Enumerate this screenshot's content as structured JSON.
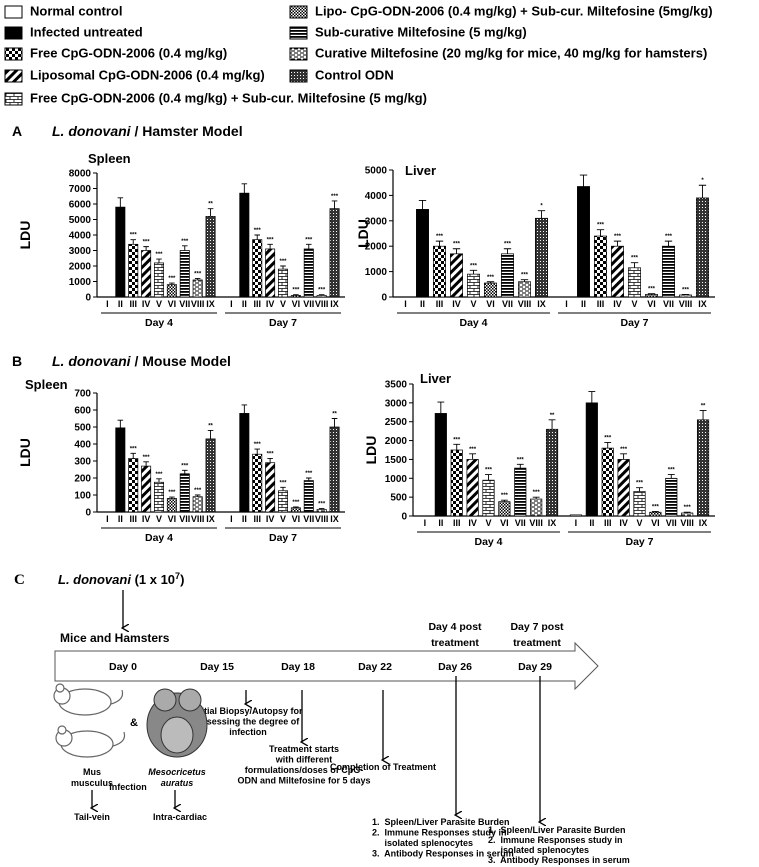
{
  "legend": {
    "items": [
      {
        "label": "Normal control",
        "pattern": "blank"
      },
      {
        "label": "Infected untreated",
        "pattern": "solid"
      },
      {
        "label": "Free CpG-ODN-2006 (0.4 mg/kg)",
        "pattern": "checker"
      },
      {
        "label": "Liposomal CpG-ODN-2006 (0.4 mg/kg)",
        "pattern": "diagonal"
      },
      {
        "label": "Free CpG-ODN-2006 (0.4 mg/kg) + Sub-cur. Miltefosine (5 mg/kg)",
        "pattern": "brick"
      },
      {
        "label": "Lipo- CpG-ODN-2006 (0.4 mg/kg) + Sub-cur. Miltefosine (5mg/kg)",
        "pattern": "fine-checker"
      },
      {
        "label": "Sub-curative Miltefosine (5 mg/kg)",
        "pattern": "hlines"
      },
      {
        "label": "Curative Miltefosine (20 mg/kg for mice, 40 mg/kg for hamsters)",
        "pattern": "dashes"
      },
      {
        "label": "Control ODN",
        "pattern": "grid"
      }
    ]
  },
  "panels": [
    {
      "label": "A",
      "organism": "L. donovani",
      "model": " / Hamster Model"
    },
    {
      "label": "B",
      "organism": "L. donovani",
      "model": " / Mouse Model"
    }
  ],
  "chart_data": [
    {
      "type": "bar",
      "title": "Spleen",
      "ylabel": "LDU",
      "categories": [
        "I",
        "II",
        "III",
        "IV",
        "V",
        "VI",
        "VII",
        "VIII",
        "IX"
      ],
      "groups": [
        {
          "name": "Day 4",
          "values": [
            0,
            5800,
            3400,
            3000,
            2200,
            800,
            3000,
            1100,
            5200
          ],
          "errors": [
            0,
            600,
            300,
            250,
            250,
            100,
            300,
            100,
            500
          ],
          "significance": [
            null,
            null,
            "***",
            "***",
            "***",
            "***",
            "***",
            "***",
            "**"
          ]
        },
        {
          "name": "Day 7",
          "values": [
            0,
            6700,
            3700,
            3100,
            1800,
            100,
            3100,
            100,
            5700
          ],
          "errors": [
            0,
            600,
            300,
            300,
            200,
            50,
            300,
            50,
            500
          ],
          "significance": [
            null,
            null,
            "***",
            "***",
            "***",
            "***",
            "***",
            "***",
            "***"
          ]
        }
      ],
      "ylim": [
        0,
        8000
      ],
      "yticks": [
        0,
        1000,
        2000,
        3000,
        4000,
        5000,
        6000,
        7000,
        8000
      ]
    },
    {
      "type": "bar",
      "title": "Liver",
      "ylabel": "LDU",
      "categories": [
        "I",
        "II",
        "III",
        "IV",
        "V",
        "VI",
        "VII",
        "VIII",
        "IX"
      ],
      "groups": [
        {
          "name": "Day 4",
          "values": [
            0,
            3450,
            2000,
            1700,
            900,
            550,
            1700,
            600,
            3100
          ],
          "errors": [
            0,
            350,
            200,
            200,
            150,
            50,
            200,
            80,
            300
          ],
          "significance": [
            null,
            null,
            "***",
            "***",
            "***",
            "***",
            "***",
            "***",
            "*"
          ]
        },
        {
          "name": "Day 7",
          "values": [
            0,
            4350,
            2400,
            2000,
            1150,
            100,
            2000,
            80,
            3900
          ],
          "errors": [
            0,
            450,
            250,
            200,
            200,
            30,
            200,
            20,
            500
          ],
          "significance": [
            null,
            null,
            "***",
            "***",
            "***",
            "***",
            "***",
            "***",
            "*"
          ]
        }
      ],
      "ylim": [
        0,
        5000
      ],
      "yticks": [
        0,
        1000,
        2000,
        3000,
        4000,
        5000
      ]
    },
    {
      "type": "bar",
      "title": "Spleen",
      "ylabel": "LDU",
      "categories": [
        "I",
        "II",
        "III",
        "IV",
        "V",
        "VI",
        "VII",
        "VIII",
        "IX"
      ],
      "groups": [
        {
          "name": "Day 4",
          "values": [
            0,
            495,
            315,
            270,
            175,
            80,
            225,
            90,
            430
          ],
          "errors": [
            0,
            45,
            30,
            25,
            20,
            8,
            20,
            10,
            50
          ],
          "significance": [
            null,
            null,
            "***",
            "***",
            "***",
            "***",
            "***",
            "***",
            "**"
          ]
        },
        {
          "name": "Day 7",
          "values": [
            0,
            580,
            340,
            290,
            125,
            25,
            185,
            15,
            500
          ],
          "errors": [
            0,
            50,
            30,
            25,
            20,
            5,
            15,
            5,
            50
          ],
          "significance": [
            null,
            null,
            "***",
            "***",
            "***",
            "***",
            "***",
            "***",
            "**"
          ]
        }
      ],
      "ylim": [
        0,
        700
      ],
      "yticks": [
        0,
        100,
        200,
        300,
        400,
        500,
        600,
        700
      ]
    },
    {
      "type": "bar",
      "title": "Liver",
      "ylabel": "LDU",
      "categories": [
        "I",
        "II",
        "III",
        "IV",
        "V",
        "VI",
        "VII",
        "VIII",
        "IX"
      ],
      "groups": [
        {
          "name": "Day 4",
          "values": [
            0,
            2720,
            1750,
            1500,
            950,
            380,
            1270,
            450,
            2300
          ],
          "errors": [
            0,
            300,
            150,
            150,
            150,
            40,
            100,
            50,
            250
          ],
          "significance": [
            null,
            null,
            "***",
            "***",
            "***",
            "***",
            "***",
            "***",
            "**"
          ]
        },
        {
          "name": "Day 7",
          "values": [
            30,
            3000,
            1800,
            1500,
            650,
            100,
            1000,
            80,
            2550
          ],
          "errors": [
            0,
            300,
            150,
            150,
            100,
            20,
            100,
            20,
            250
          ],
          "significance": [
            null,
            null,
            "***",
            "***",
            "***",
            "***",
            "***",
            "***",
            "**"
          ]
        }
      ],
      "ylim": [
        0,
        3500
      ],
      "yticks": [
        0,
        500,
        1000,
        1500,
        2000,
        2500,
        3000,
        3500
      ]
    }
  ],
  "timeline": {
    "label": "C",
    "organism": "L. donovani",
    "dose": " (1 x 10",
    "exponent": "7",
    "dose_close": ")",
    "hosts": "Mice and Hamsters",
    "days": [
      "Day 0",
      "Day 15",
      "Day 18",
      "Day 22",
      "Day 26",
      "Day 29"
    ],
    "post4": [
      "Day 4 post",
      "treatment"
    ],
    "post7": [
      "Day 7 post",
      "treatment"
    ],
    "biopsy": [
      "Initial Biopsy/Autopsy for",
      "assessing the degree of",
      "infection"
    ],
    "treatment": [
      "Treatment starts",
      "with different",
      "formulations/doses of CpG-",
      "ODN and Miltefosine for 5 days"
    ],
    "completion": "Completion of Treatment",
    "readouts4": [
      "1.  Spleen/Liver Parasite Burden",
      "2.  Immune Responses study in",
      "     isolated splenocytes",
      "3.  Antibody Responses in serum"
    ],
    "readouts7": [
      "1.  Spleen/Liver Parasite Burden",
      "2.  Immune Responses study in",
      "     isolated splenocytes",
      "3.  Antibody Responses in serum"
    ],
    "mouse": [
      "Mus",
      "musculus"
    ],
    "and": "&",
    "hamster": [
      "Mesocricetus",
      "auratus"
    ],
    "infection": "Infection",
    "mouse_route": "Tail-vein",
    "hamster_route": "Intra-cardiac"
  }
}
